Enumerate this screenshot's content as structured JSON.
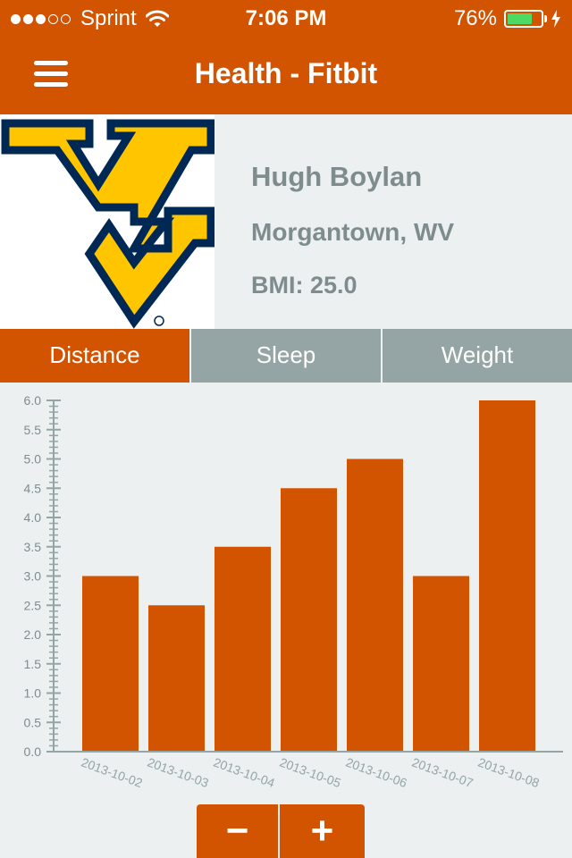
{
  "status_bar": {
    "signal_filled": 3,
    "signal_total": 5,
    "carrier": "Sprint",
    "time": "7:06 PM",
    "battery_percent_label": "76%",
    "battery_level": 0.76,
    "icons": [
      "signal-dots-icon",
      "wifi-icon",
      "battery-icon",
      "charging-bolt-icon"
    ]
  },
  "nav": {
    "title": "Health - Fitbit",
    "menu_icon": "hamburger-menu-icon"
  },
  "profile": {
    "name": "Hugh Boylan",
    "location": "Morgantown, WV",
    "bmi": "BMI: 25.0",
    "logo": "wvu-flying-wv-logo"
  },
  "tabs": [
    {
      "label": "Distance",
      "active": true
    },
    {
      "label": "Sleep",
      "active": false
    },
    {
      "label": "Weight",
      "active": false
    }
  ],
  "chart_data": {
    "type": "bar",
    "categories": [
      "2013-10-02",
      "2013-10-03",
      "2013-10-04",
      "2013-10-05",
      "2013-10-06",
      "2013-10-07",
      "2013-10-08"
    ],
    "values": [
      3.0,
      2.5,
      3.5,
      4.5,
      5.0,
      3.0,
      6.0
    ],
    "ylim": [
      0,
      6.0
    ],
    "yticks": [
      "0.0",
      "0.5",
      "1.0",
      "1.5",
      "2.0",
      "2.5",
      "3.0",
      "3.5",
      "4.0",
      "4.5",
      "5.0",
      "5.5",
      "6.0"
    ],
    "grid": false,
    "legend": "none",
    "bar_color": "#d35400"
  },
  "zoom": {
    "minus_label": "−",
    "plus_label": "+"
  },
  "colors": {
    "accent": "#d35400",
    "inactive_tab": "#95a5a6",
    "text_gray": "#7f8c8d",
    "background": "#ecf0f1"
  }
}
